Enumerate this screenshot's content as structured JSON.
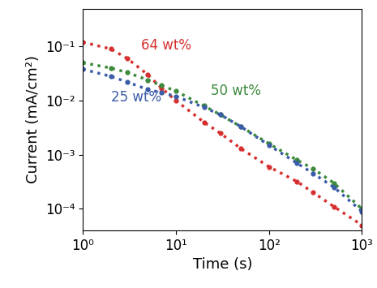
{
  "chart_data": {
    "type": "line",
    "x_label": "Time (s)",
    "y_label": "Current (mA/cm²)",
    "log": true,
    "xlim": [
      1,
      1000
    ],
    "ylim": [
      4e-05,
      0.5
    ],
    "xticks": [
      {
        "value": 1,
        "label": "10⁰"
      },
      {
        "value": 10,
        "label": "10¹"
      },
      {
        "value": 100,
        "label": "10²"
      },
      {
        "value": 1000,
        "label": "10³"
      }
    ],
    "yticks": [
      {
        "value": 0.0001,
        "label": "10⁻⁴"
      },
      {
        "value": 0.001,
        "label": "10⁻³"
      },
      {
        "value": 0.01,
        "label": "10⁻²"
      },
      {
        "value": 0.1,
        "label": "10⁻¹"
      }
    ],
    "x": [
      1,
      2,
      3,
      5,
      7,
      10,
      20,
      30,
      50,
      100,
      200,
      300,
      500,
      1000
    ],
    "marker": "o",
    "line_style": "dotted",
    "series": [
      {
        "name": "64 wt%",
        "color": "#d62f2f",
        "values": [
          0.12,
          0.09,
          0.06,
          0.03,
          0.017,
          0.01,
          0.004,
          0.0025,
          0.0013,
          0.0006,
          0.00032,
          0.0002,
          0.00011,
          5e-05
        ]
      },
      {
        "name": "50 wt%",
        "color": "#3c8a3c",
        "values": [
          0.05,
          0.04,
          0.033,
          0.024,
          0.019,
          0.015,
          0.008,
          0.0055,
          0.0033,
          0.0016,
          0.0008,
          0.00055,
          0.0003,
          0.0001
        ]
      },
      {
        "name": "25 wt%",
        "color": "#3a5ba8",
        "values": [
          0.038,
          0.028,
          0.022,
          0.016,
          0.014,
          0.012,
          0.0075,
          0.0055,
          0.0033,
          0.0015,
          0.0007,
          0.00045,
          0.00025,
          9e-05
        ]
      }
    ]
  }
}
